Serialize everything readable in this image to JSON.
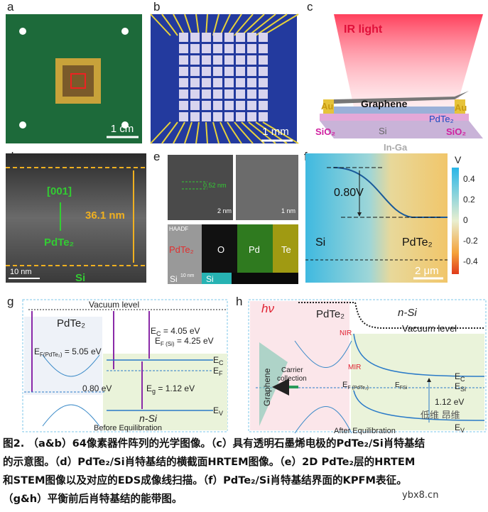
{
  "panels": {
    "a": {
      "label": "a",
      "scale_bar": "1 cm"
    },
    "b": {
      "label": "b",
      "scale_bar": "1 mm"
    },
    "c": {
      "label": "c",
      "light": "IR light",
      "graphene": "Graphene",
      "electrodes": [
        "Au",
        "Au"
      ],
      "material": "PdTe₂",
      "oxide": [
        "SiO₂",
        "SiO₂"
      ],
      "substrate": "Si",
      "contact": "In-Ga"
    },
    "d": {
      "label": "d",
      "direction": "[001]",
      "material": "PdTe₂",
      "thickness": "36.1 nm",
      "scale_bar": "10 nm",
      "substrate": "Si"
    },
    "e": {
      "label": "e",
      "spacing": "0.52 nm",
      "scale_bars": [
        "2 nm",
        "1 nm",
        "10 nm"
      ],
      "haadf": "HAADF",
      "maps": [
        "PdTe₂",
        "O",
        "Pd",
        "Te"
      ],
      "si_labels": [
        "Si",
        "Si"
      ]
    },
    "f": {
      "label": "f",
      "unit": "V",
      "colorbar_ticks": [
        "0.4",
        "0.2",
        "0",
        "-0.2",
        "-0.4"
      ],
      "potential": "0.80V",
      "left": "Si",
      "right": "PdTe₂",
      "scale_bar": "2 μm"
    },
    "g": {
      "label": "g",
      "vacuum": "Vacuum level",
      "material": "PdTe₂",
      "ec_value": {
        "main": "E",
        "sub": "C",
        "rest": " = 4.05 eV"
      },
      "ef_si_value": {
        "main": "E",
        "sub": "F (Si)",
        "rest": " = 4.25 eV"
      },
      "ef_pdte2_value": {
        "main": "E",
        "sub": "F(PdTe₂)",
        "rest": " = 5.05 eV"
      },
      "ec": {
        "main": "E",
        "sub": "C"
      },
      "ef": {
        "main": "E",
        "sub": "F"
      },
      "barrier": "0.80 eV",
      "eg_value": {
        "main": "E",
        "sub": "g",
        "rest": " = 1.12 eV"
      },
      "semiconductor": "n-Si",
      "ev": {
        "main": "E",
        "sub": "V"
      },
      "footer": "Before Equilibration"
    },
    "h": {
      "label": "h",
      "photon": "hν",
      "material": "PdTe₂",
      "semiconductor": "n-Si",
      "vacuum": "Vacuum level",
      "nir": "NIR",
      "mir": "MIR",
      "collection": [
        "Carrier",
        "collection"
      ],
      "graphene": "Graphene",
      "ec": {
        "main": "E",
        "sub": "C"
      },
      "esi": {
        "main": "E",
        "sub": "Si"
      },
      "ef_pdte2": {
        "main": "E",
        "sub": "F (PdTe₂)"
      },
      "efsi": {
        "main": "E",
        "sub": "FSi"
      },
      "gap": "1.12 eV",
      "ev": {
        "main": "E",
        "sub": "V"
      },
      "footer": "After Equilibration",
      "watermark": "低维 昂维"
    }
  },
  "caption": {
    "lines": [
      "图2. （a&b）64像素器件阵列的光学图像。（c）具有透明石墨烯电极的PdTe₂/Si肖特基结",
      "的示意图。（d）PdTe₂/Si肖特基结的横截面HRTEM图像。（e）2D PdTe₂层的HRTEM",
      "和STEM图像以及对应的EDS成像线扫描。（f）PdTe₂/Si肖特基结界面的KPFM表征。",
      "（g&h）平衡前后肖特基结的能带图。"
    ],
    "watermark": "ybx8.cn"
  }
}
